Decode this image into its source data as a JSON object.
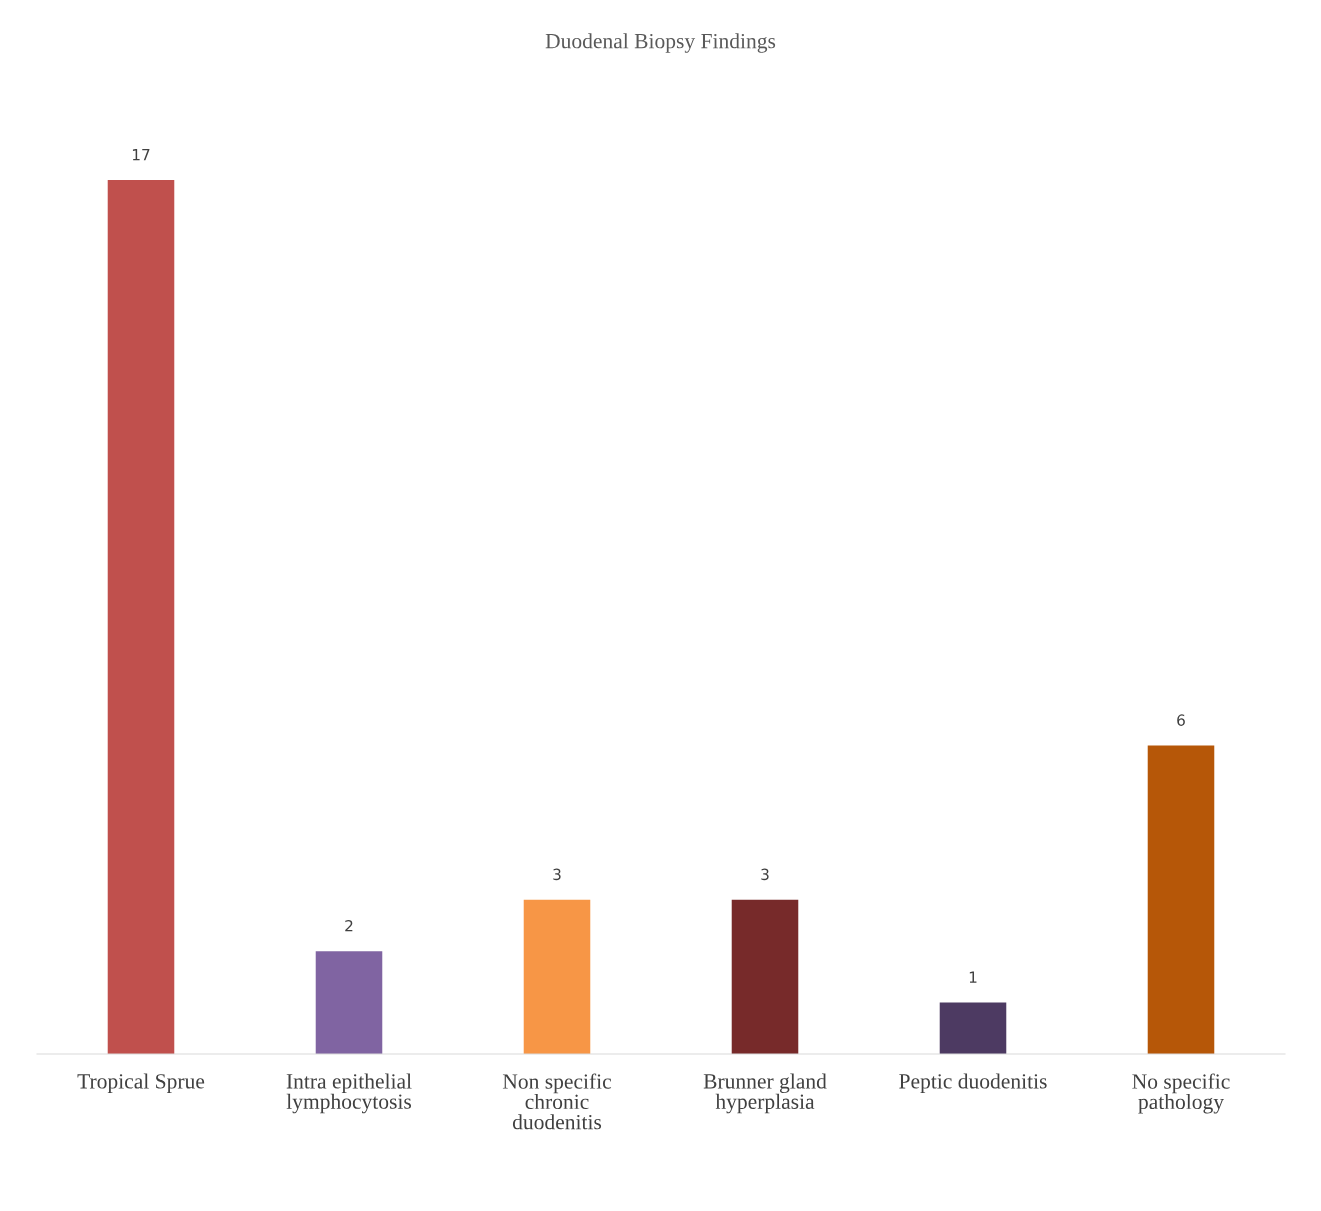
{
  "chart_data": {
    "type": "bar",
    "title": "Duodenal Biopsy Findings",
    "categories": [
      "Tropical Sprue",
      "Intra epithelial lymphocytosis",
      "Non specific chronic duodenitis",
      "Brunner gland hyperplasia",
      "Peptic duodenitis",
      "No specific pathology"
    ],
    "values": [
      17,
      2,
      3,
      3,
      1,
      6
    ],
    "colors": [
      "#c0504d",
      "#8064a2",
      "#f79646",
      "#772a2a",
      "#4d3a62",
      "#b65708"
    ],
    "data_labels": true,
    "grid": false,
    "legend": false
  }
}
